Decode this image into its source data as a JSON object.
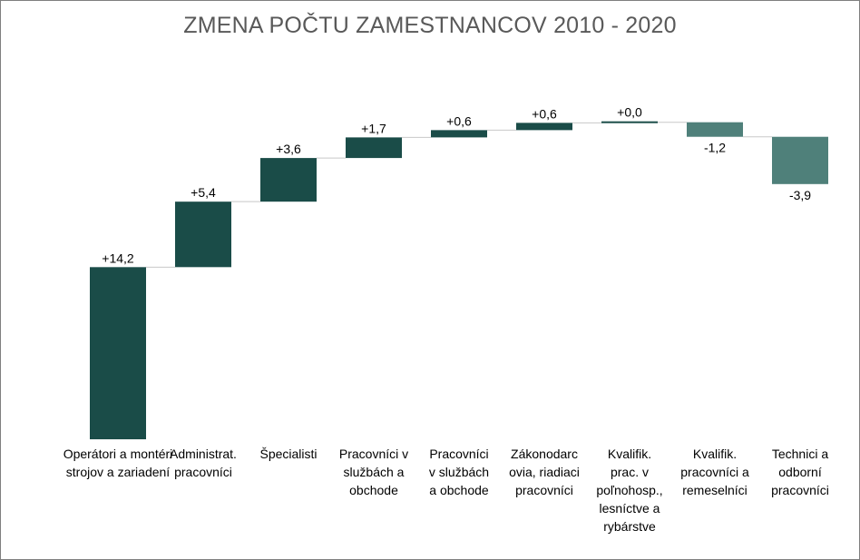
{
  "chart_data": {
    "type": "bar",
    "subtype": "waterfall",
    "title": "ZMENA POČTU ZAMESTNANCOV 2010 - 2020",
    "xlabel": "",
    "ylabel": "",
    "categories": [
      [
        "Operátori a montéri",
        "strojov a zariadení"
      ],
      [
        "Administrat.",
        "pracovníci"
      ],
      [
        "Špecialisti"
      ],
      [
        "Pracovníci v",
        "službách a",
        "obchode"
      ],
      [
        "Pracovníci",
        "v službách",
        "a obchode"
      ],
      [
        "Zákonodarc",
        "ovia, riadiaci",
        "pracovníci"
      ],
      [
        "Kvalifik.",
        "prac. v",
        "poľnohosp.,",
        "lesníctve a",
        "rybárstve"
      ],
      [
        "Kvalifik.",
        "pracovníci a",
        "remeselníci"
      ],
      [
        "Technici a",
        "odborní",
        "pracovníci"
      ]
    ],
    "values": [
      14.2,
      5.4,
      3.6,
      1.7,
      0.6,
      0.6,
      0.05,
      -1.2,
      -3.9
    ],
    "data_labels": [
      "+14,2",
      "+5,4",
      "+3,6",
      "+1,7",
      "+0,6",
      "+0,6",
      "+0,0",
      "-1,2",
      "-3,9"
    ],
    "ylim": [
      0,
      27.1
    ],
    "grid": false,
    "legend": "none",
    "colors": {
      "increase": "#1a4c48",
      "decrease": "#4f807a",
      "connector": "#c8c8c8"
    }
  }
}
